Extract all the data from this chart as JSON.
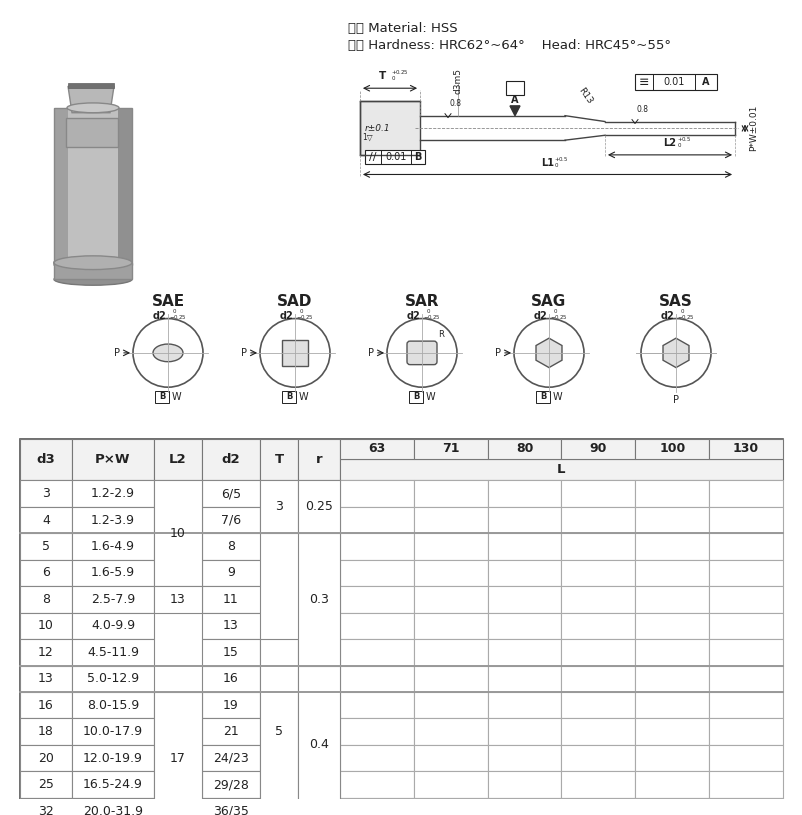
{
  "material_line1": "材質 Material: HSS",
  "material_line2": "硬度 Hardness: HRC62°~64°    Head: HRC45°~55°",
  "L_subheaders": [
    "63",
    "71",
    "80",
    "90",
    "100",
    "130"
  ],
  "table_rows": [
    [
      "3",
      "1.2-2.9",
      "",
      "6/5"
    ],
    [
      "4",
      "1.2-3.9",
      "10",
      "7/6"
    ],
    [
      "5",
      "1.6-4.9",
      "",
      "8"
    ],
    [
      "6",
      "1.6-5.9",
      "",
      "9"
    ],
    [
      "8",
      "2.5-7.9",
      "13",
      "11"
    ],
    [
      "10",
      "4.0-9.9",
      "",
      "13"
    ],
    [
      "12",
      "4.5-11.9",
      "",
      "15"
    ],
    [
      "13",
      "5.0-12.9",
      "",
      "16"
    ],
    [
      "16",
      "8.0-15.9",
      "17",
      "19"
    ],
    [
      "18",
      "10.0-17.9",
      "",
      "21"
    ],
    [
      "20",
      "12.0-19.9",
      "",
      "24/23"
    ],
    [
      "25",
      "16.5-24.9",
      "",
      "29/28"
    ],
    [
      "32",
      "20.0-31.9",
      "",
      "36/35"
    ]
  ],
  "l2_merges": [
    [
      0,
      3,
      "10"
    ],
    [
      4,
      4,
      "13"
    ],
    [
      8,
      12,
      "17"
    ]
  ],
  "t_merges": [
    [
      0,
      1,
      "3"
    ],
    [
      6,
      12,
      "5"
    ]
  ],
  "r_merges": [
    [
      0,
      1,
      "0.25"
    ],
    [
      2,
      6,
      "0.3"
    ],
    [
      7,
      12,
      "0.4"
    ]
  ],
  "section_labels": [
    "SAE",
    "SAD",
    "SAR",
    "SAG",
    "SAS"
  ],
  "bg_color": "#ffffff",
  "line_color": "#222222",
  "table_border_color": "#555555",
  "table_line_color": "#888888"
}
